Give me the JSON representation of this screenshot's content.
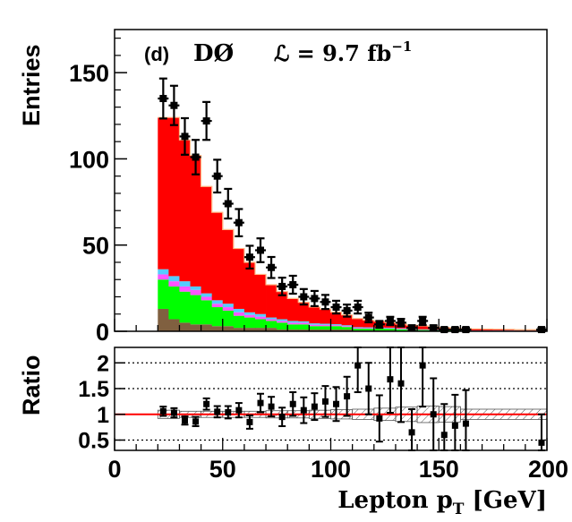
{
  "chart_data": [
    {
      "type": "bar",
      "panel_label": "(d)",
      "experiment": "DØ",
      "luminosity_label": "ℒ = 9.7 fb",
      "luminosity_exponent": "−1",
      "ylabel": "Entries",
      "xlim": [
        0,
        200
      ],
      "ylim": [
        0,
        175
      ],
      "y_ticks": [
        "0",
        "50",
        "100",
        "150"
      ],
      "bin_edges": [
        20,
        25,
        30,
        35,
        40,
        45,
        50,
        55,
        60,
        65,
        70,
        75,
        80,
        85,
        90,
        95,
        100,
        105,
        110,
        115,
        120,
        125,
        130,
        135,
        140,
        145,
        150,
        155,
        160,
        165,
        170,
        175,
        180,
        185,
        190,
        195,
        200
      ],
      "stack_order": [
        "brown",
        "green",
        "magenta",
        "cyan",
        "red"
      ],
      "stack_colors": {
        "brown": "#806040",
        "green": "#00ff00",
        "magenta": "#ff55ff",
        "cyan": "#55ccff",
        "red": "#ff0000",
        "light": "#ffbb88"
      },
      "stacks": {
        "brown": [
          13,
          7,
          5,
          4,
          4,
          3,
          3,
          2,
          2,
          2,
          2,
          1,
          1,
          1,
          1,
          1,
          1,
          1,
          0.5,
          0.5,
          0.5,
          0.5,
          0.3,
          0.3,
          0.3,
          0.2,
          0.2,
          0.2,
          0.1,
          0.1,
          0.1,
          0.1,
          0.1,
          0.1,
          0.1,
          0.1
        ],
        "green": [
          17,
          19,
          18,
          17,
          14,
          11,
          9,
          7,
          6,
          5,
          4,
          4,
          3,
          3,
          2,
          2,
          2,
          1.5,
          1,
          1,
          1,
          1,
          0.8,
          0.6,
          0.5,
          0.5,
          0.4,
          0.3,
          0.3,
          0.2,
          0.2,
          0.2,
          0.2,
          0.1,
          0.1,
          0.1
        ],
        "magenta": [
          3,
          3,
          3,
          3,
          2,
          2,
          2,
          2,
          1.5,
          1.5,
          1,
          1,
          1,
          1,
          0.8,
          0.8,
          0.6,
          0.5,
          0.5,
          0.4,
          0.4,
          0.3,
          0.3,
          0.2,
          0.2,
          0.2,
          0.1,
          0.1,
          0.1,
          0.1,
          0.1,
          0.1,
          0.1,
          0.1,
          0.1,
          0.1
        ],
        "cyan": [
          3,
          3,
          3,
          2,
          2,
          2,
          2,
          2,
          1.5,
          1.5,
          1,
          1,
          1,
          0.8,
          0.8,
          0.6,
          0.5,
          0.5,
          0.4,
          0.4,
          0.3,
          0.3,
          0.3,
          0.2,
          0.2,
          0.2,
          0.1,
          0.1,
          0.1,
          0.1,
          0.1,
          0.1,
          0.1,
          0.1,
          0.1,
          0.1
        ],
        "red": [
          88,
          92,
          82,
          76,
          62,
          51,
          43,
          35,
          29,
          23,
          19,
          16,
          13,
          11,
          9.5,
          8.5,
          7,
          6,
          5,
          4.2,
          3.6,
          3,
          2.6,
          2.2,
          1.9,
          1.6,
          1.4,
          1.2,
          1,
          0.9,
          0.8,
          0.7,
          0.6,
          0.5,
          0.5,
          0.4
        ]
      },
      "data_points": {
        "x": [
          22.5,
          27.5,
          32.5,
          37.5,
          42.5,
          47.5,
          52.5,
          57.5,
          62.5,
          67.5,
          72.5,
          77.5,
          82.5,
          87.5,
          92.5,
          97.5,
          102.5,
          107.5,
          112.5,
          117.5,
          122.5,
          127.5,
          132.5,
          137.5,
          142.5,
          147.5,
          152.5,
          157.5,
          162.5,
          197.5
        ],
        "y": [
          135,
          131,
          113,
          101,
          122,
          90,
          74,
          63,
          43,
          47,
          37,
          26,
          27,
          20,
          19,
          17,
          14,
          12,
          14,
          8,
          4,
          6,
          5,
          2,
          6,
          2,
          1,
          1,
          1,
          1
        ],
        "yerr": [
          11.6,
          11.4,
          10.6,
          10,
          11,
          9.5,
          8.6,
          7.9,
          6.6,
          6.9,
          6.1,
          5.1,
          5.2,
          4.5,
          4.4,
          4.1,
          3.7,
          3.5,
          3.7,
          2.8,
          2,
          2.4,
          2.2,
          1.4,
          2.4,
          1.4,
          1,
          1,
          1,
          1
        ]
      }
    },
    {
      "type": "scatter",
      "ylabel": "Ratio",
      "xlabel": "Lepton p",
      "xlabel_subscript": "T",
      "xlabel_unit": " [GeV]",
      "xlim": [
        0,
        200
      ],
      "ylim": [
        0.3,
        2.3
      ],
      "x_ticks": [
        "0",
        "50",
        "100",
        "150",
        "200"
      ],
      "y_ticks": [
        "0.5",
        "1",
        "1.5",
        "2"
      ],
      "dotted_lines_y": [
        0.5,
        1,
        1.5,
        2
      ],
      "reference_line": 1,
      "reference_color": "#ff0000",
      "uncertainty_band": {
        "edges": [
          20,
          30,
          40,
          50,
          60,
          70,
          80,
          90,
          100,
          110,
          120,
          130,
          140,
          150,
          160,
          200
        ],
        "halfwidth": [
          0.08,
          0.06,
          0.06,
          0.06,
          0.06,
          0.07,
          0.07,
          0.08,
          0.09,
          0.1,
          0.12,
          0.14,
          0.16,
          0.15,
          0.1,
          0.1
        ]
      },
      "points": {
        "x": [
          22.5,
          27.5,
          32.5,
          37.5,
          42.5,
          47.5,
          52.5,
          57.5,
          62.5,
          67.5,
          72.5,
          77.5,
          82.5,
          87.5,
          92.5,
          97.5,
          102.5,
          107.5,
          112.5,
          117.5,
          122.5,
          127.5,
          132.5,
          137.5,
          142.5,
          147.5,
          152.5,
          157.5,
          162.5,
          197.5
        ],
        "y": [
          1.06,
          1.03,
          0.88,
          0.86,
          1.2,
          1.05,
          1.04,
          1.08,
          0.85,
          1.22,
          1.15,
          0.95,
          1.2,
          1.08,
          1.15,
          1.25,
          1.2,
          1.35,
          1.95,
          1.5,
          0.92,
          1.68,
          1.6,
          0.65,
          1.95,
          1.0,
          0.6,
          0.78,
          0.82,
          0.45
        ],
        "yerr": [
          0.09,
          0.09,
          0.08,
          0.09,
          0.11,
          0.11,
          0.12,
          0.14,
          0.13,
          0.18,
          0.19,
          0.18,
          0.23,
          0.25,
          0.26,
          0.3,
          0.33,
          0.38,
          0.52,
          0.5,
          0.45,
          0.65,
          0.75,
          0.45,
          0.8,
          0.7,
          0.6,
          0.6,
          0.65,
          0.55
        ]
      }
    }
  ]
}
